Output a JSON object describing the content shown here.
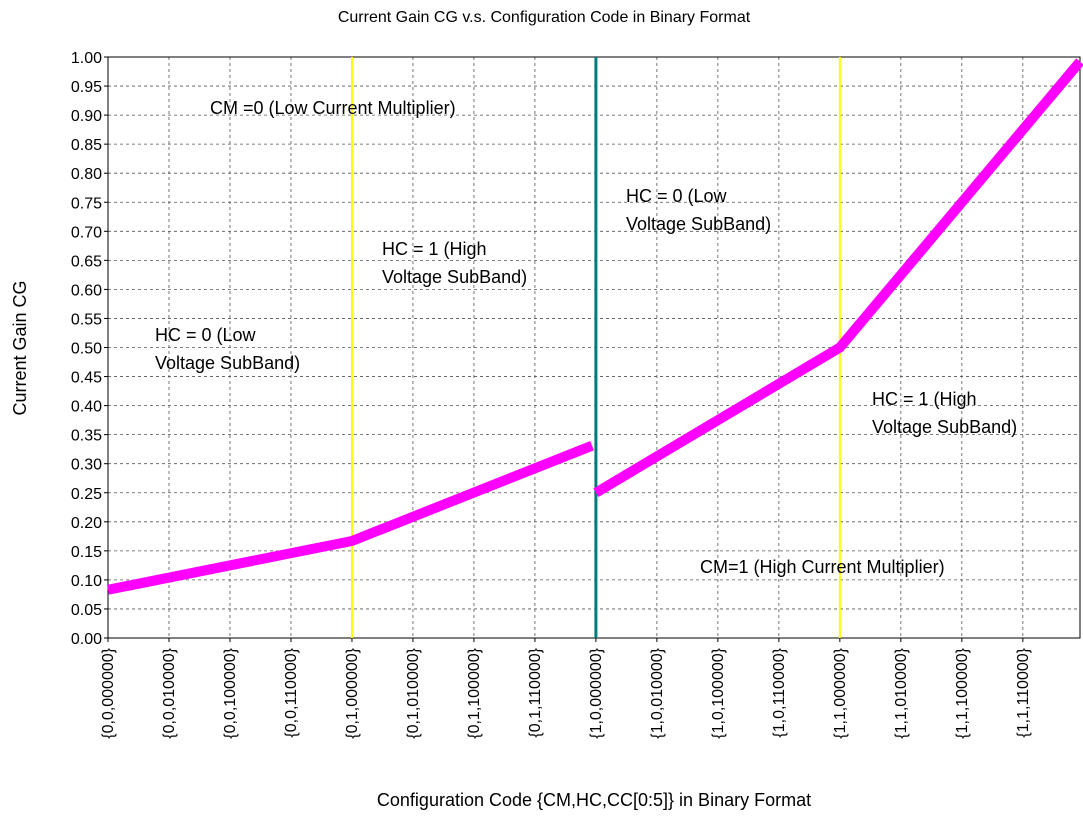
{
  "chart_data": {
    "type": "line",
    "title": "Current Gain CG v.s. Configuration Code in Binary Format",
    "xlabel": "Configuration Code {CM,HC,CC[0:5]} in Binary Format",
    "ylabel": "Current Gain CG",
    "xlim": [
      0,
      255
    ],
    "ylim": [
      0,
      1
    ],
    "xticks": [
      {
        "value": 0,
        "label": "{0,0,000000}"
      },
      {
        "value": 16,
        "label": "{0,0,010000}"
      },
      {
        "value": 32,
        "label": "{0,0,100000}"
      },
      {
        "value": 48,
        "label": "{0,0,110000}"
      },
      {
        "value": 64,
        "label": "{0,1,000000}"
      },
      {
        "value": 80,
        "label": "{0,1,010000}"
      },
      {
        "value": 96,
        "label": "{0,1,100000}"
      },
      {
        "value": 112,
        "label": "{0,1,110000}"
      },
      {
        "value": 128,
        "label": "{1,0,000000}"
      },
      {
        "value": 144,
        "label": "{1,0,010000}"
      },
      {
        "value": 160,
        "label": "{1,0,100000}"
      },
      {
        "value": 176,
        "label": "{1,0,110000}"
      },
      {
        "value": 192,
        "label": "{1,1,000000}"
      },
      {
        "value": 208,
        "label": "{1,1,010000}"
      },
      {
        "value": 224,
        "label": "{1,1,100000}"
      },
      {
        "value": 240,
        "label": "{1,1,110000}"
      }
    ],
    "yticks": [
      {
        "value": 0,
        "label": "0.00"
      },
      {
        "value": 0.05,
        "label": "0.05"
      },
      {
        "value": 0.1,
        "label": "0.10"
      },
      {
        "value": 0.15,
        "label": "0.15"
      },
      {
        "value": 0.2,
        "label": "0.20"
      },
      {
        "value": 0.25,
        "label": "0.25"
      },
      {
        "value": 0.3,
        "label": "0.30"
      },
      {
        "value": 0.35,
        "label": "0.35"
      },
      {
        "value": 0.4,
        "label": "0.40"
      },
      {
        "value": 0.45,
        "label": "0.45"
      },
      {
        "value": 0.5,
        "label": "0.50"
      },
      {
        "value": 0.55,
        "label": "0.55"
      },
      {
        "value": 0.6,
        "label": "0.60"
      },
      {
        "value": 0.65,
        "label": "0.65"
      },
      {
        "value": 0.7,
        "label": "0.70"
      },
      {
        "value": 0.75,
        "label": "0.75"
      },
      {
        "value": 0.8,
        "label": "0.80"
      },
      {
        "value": 0.85,
        "label": "0.85"
      },
      {
        "value": 0.9,
        "label": "0.90"
      },
      {
        "value": 0.95,
        "label": "0.95"
      },
      {
        "value": 1,
        "label": "1.00"
      }
    ],
    "grid": true,
    "series": [
      {
        "color": "#ff00ff",
        "x": [
          0,
          64,
          127
        ],
        "values": [
          0.083,
          0.167,
          0.331
        ]
      },
      {
        "color": "#ff00ff",
        "x": [
          128,
          192,
          255
        ],
        "values": [
          0.25,
          0.5,
          0.992
        ]
      }
    ],
    "vlines": [
      {
        "x": 64,
        "color": "#ffff00"
      },
      {
        "x": 128,
        "color": "#007b7b"
      },
      {
        "x": 192,
        "color": "#ffff00"
      }
    ],
    "annotations": [
      [
        "CM =0 (Low Current Multiplier)"
      ],
      [
        "HC = 1 (High",
        "Voltage SubBand)"
      ],
      [
        "HC = 0 (Low",
        "Voltage SubBand)"
      ],
      [
        "HC = 0 (Low",
        "Voltage SubBand)"
      ],
      [
        "HC = 1 (High",
        "Voltage SubBand)"
      ],
      [
        "CM=1 (High Current Multiplier)"
      ]
    ]
  }
}
